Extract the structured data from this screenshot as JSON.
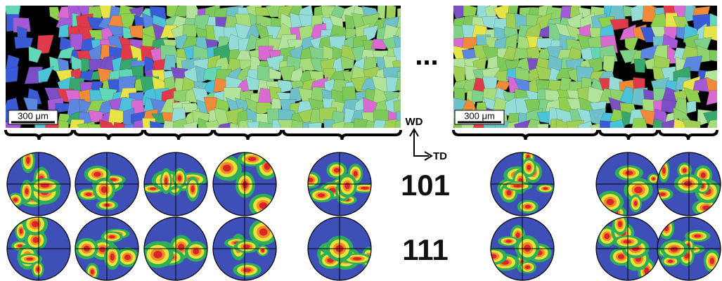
{
  "maps": [
    {
      "scale_bar": "300 μm"
    },
    {
      "scale_bar": "300 μm"
    }
  ],
  "ellipsis": "...",
  "axes": {
    "wd": "WD",
    "td": "TD"
  },
  "rows": [
    {
      "label": "101"
    },
    {
      "label": "111"
    }
  ]
}
